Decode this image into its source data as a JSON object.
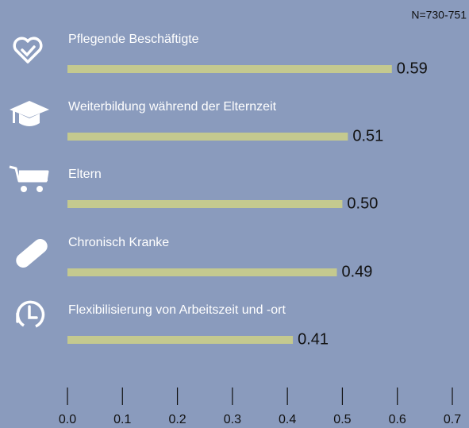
{
  "chart_data": {
    "type": "bar",
    "orientation": "horizontal",
    "annotation": "N=730-751",
    "categories": [
      "Pflegende Beschäftigte",
      "Weiterbildung während der Elternzeit",
      "Eltern",
      "Chronisch Kranke",
      "Flexibilisierung von Arbeitszeit und -ort"
    ],
    "values": [
      0.59,
      0.51,
      0.5,
      0.49,
      0.41
    ],
    "value_labels": [
      "0.59",
      "0.51",
      "0.50",
      "0.49",
      "0.41"
    ],
    "color": "#c4c98f",
    "xlim": [
      0,
      0.7
    ],
    "xticks": [
      {
        "value": 0,
        "label": "0.0"
      },
      0.1,
      0.2,
      0.3,
      0.4,
      0.5,
      0.6,
      0.7
    ]
  }
}
